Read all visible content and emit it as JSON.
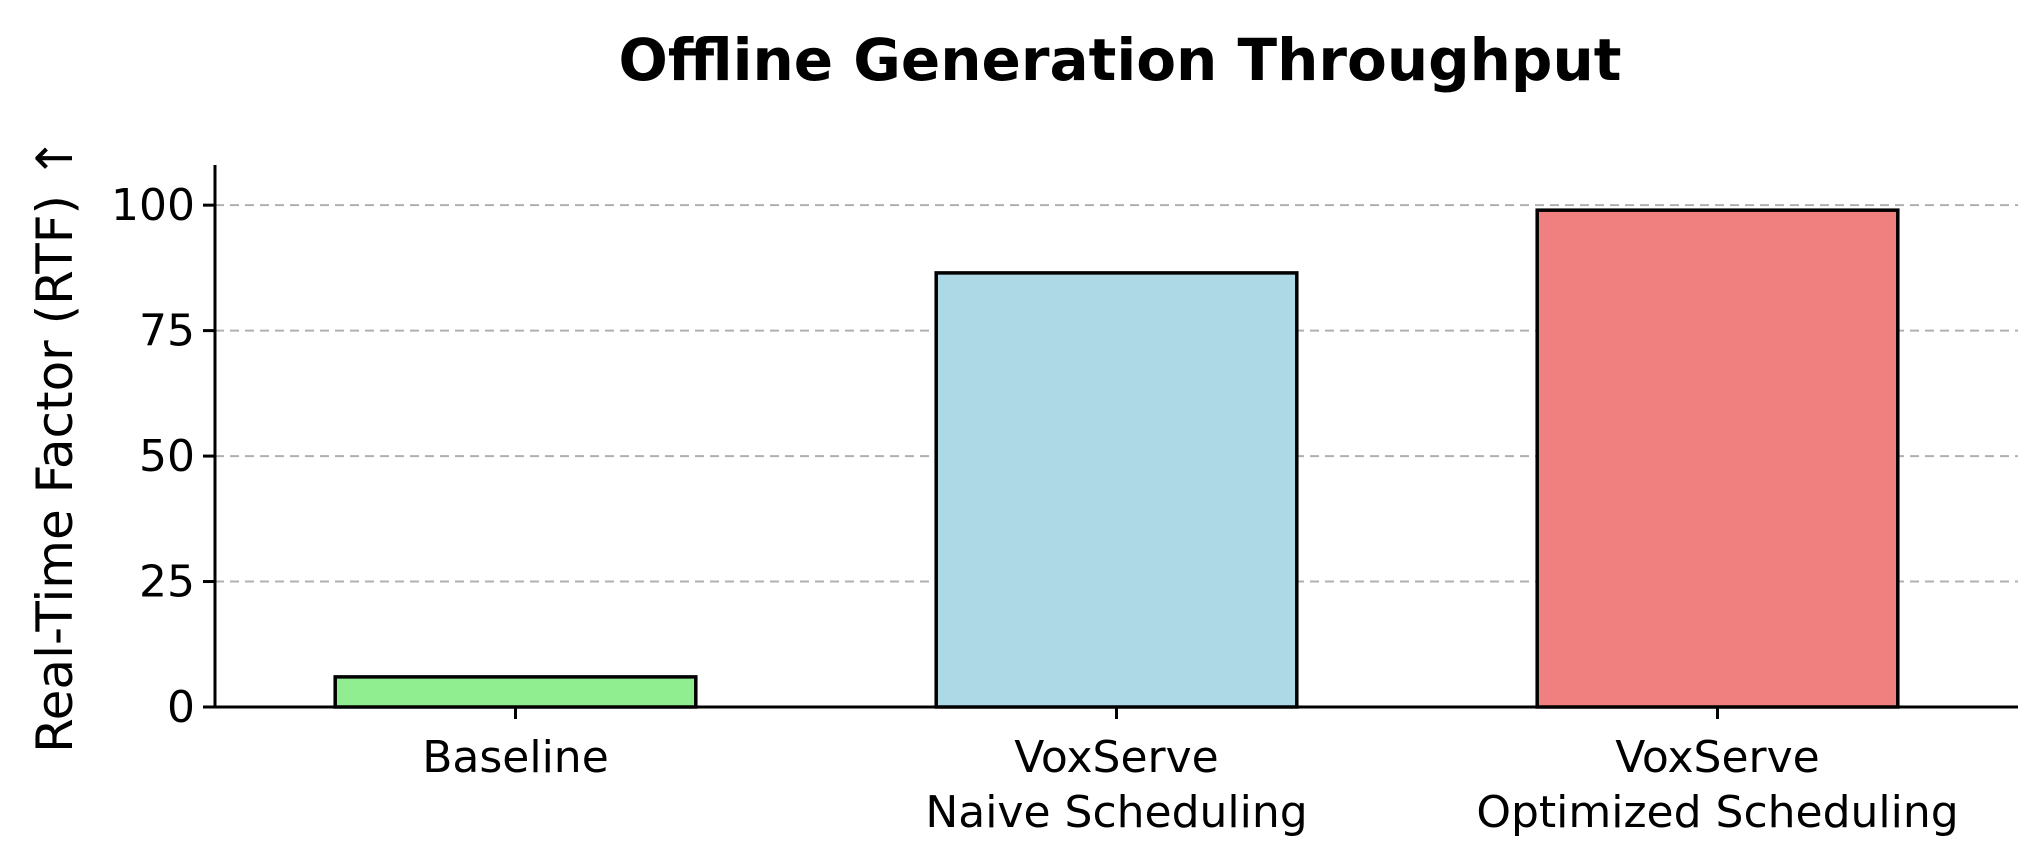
{
  "chart_data": {
    "type": "bar",
    "title": "Offline Generation Throughput",
    "ylabel": "Real-Time Factor (RTF) ↑",
    "xlabel": "",
    "categories": [
      [
        "Baseline"
      ],
      [
        "VoxServe",
        "Naive Scheduling"
      ],
      [
        "VoxServe",
        "Optimized Scheduling"
      ]
    ],
    "values": [
      6,
      86.5,
      99
    ],
    "colors": [
      "#90ee90",
      "#add8e6",
      "#f08080"
    ],
    "ylim": [
      0,
      108
    ],
    "yticks": [
      0,
      25,
      50,
      75,
      100
    ],
    "grid": "y-dashed"
  }
}
